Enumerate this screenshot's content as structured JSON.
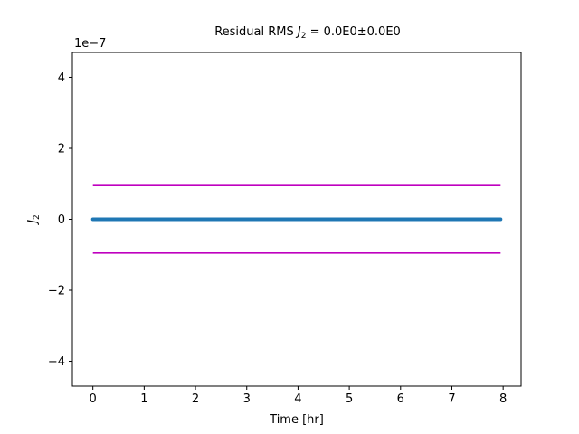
{
  "chart_data": {
    "type": "line",
    "title": "Residual RMS J₂ = 0.0E0±0.0E0",
    "title_parts": {
      "prefix": "Residual RMS ",
      "symbol": "J",
      "subscript": "2",
      "suffix": " = 0.0E0±0.0E0"
    },
    "xlabel": "Time [hr]",
    "ylabel_parts": {
      "symbol": "J",
      "subscript": "2"
    },
    "y_offset_label": "1e−7",
    "xlim": [
      -0.4,
      8.35
    ],
    "ylim": [
      -4.7e-07,
      4.7e-07
    ],
    "x_ticks": [
      0,
      1,
      2,
      3,
      4,
      5,
      6,
      7,
      8
    ],
    "y_ticks": [
      -4,
      -2,
      0,
      2,
      4
    ],
    "y_tick_scale": 1e-07,
    "grid": false,
    "series": [
      {
        "x": [
          0,
          7.95
        ],
        "y": [
          0,
          0
        ],
        "color": "#1f77b4",
        "style": "dots"
      },
      {
        "x": [
          0,
          7.95
        ],
        "y": [
          9.5e-08,
          9.5e-08
        ],
        "color": "#bf00bf",
        "style": "line"
      },
      {
        "x": [
          0,
          7.95
        ],
        "y": [
          -9.5e-08,
          -9.5e-08
        ],
        "color": "#bf00bf",
        "style": "line"
      }
    ]
  }
}
